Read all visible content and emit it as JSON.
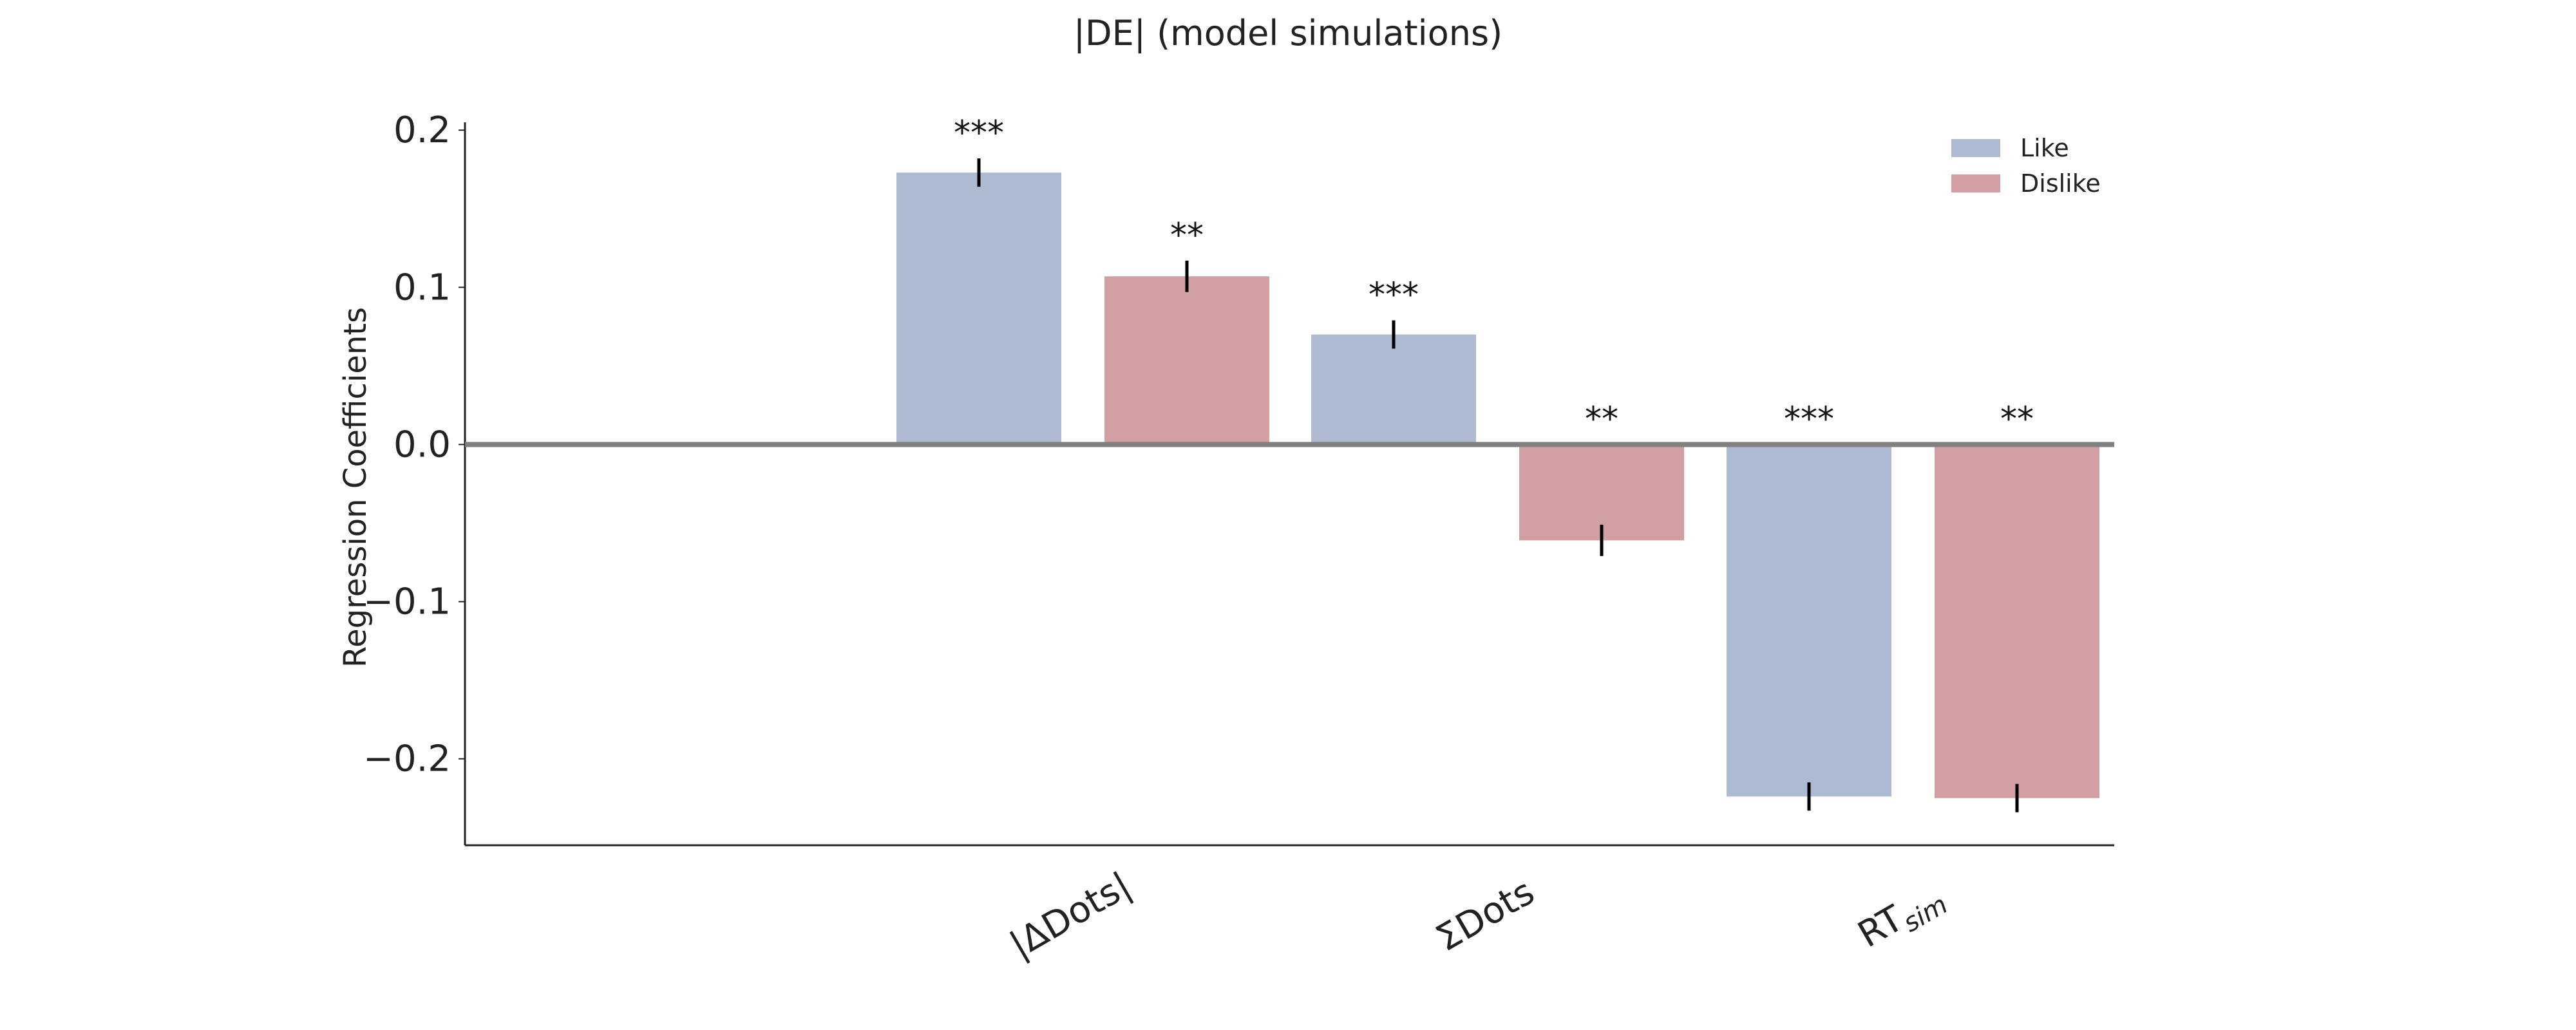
{
  "chart_data": {
    "type": "bar",
    "title": "|DE| (model simulations)",
    "xlabel": "",
    "ylabel": "Regression Coefficients",
    "categories": [
      "|ΔDots|",
      "ΣDots",
      "RT_sim"
    ],
    "category_labels": [
      {
        "main": "|ΔDots|",
        "sub": ""
      },
      {
        "main": "ΣDots",
        "sub": ""
      },
      {
        "main": "RT",
        "sub": "sim"
      }
    ],
    "series": [
      {
        "name": "Like",
        "color": "#aebad2",
        "values": [
          0.173,
          0.07,
          -0.224
        ],
        "errors": [
          0.009,
          0.009,
          0.009
        ],
        "significance": [
          "***",
          "***",
          "***"
        ]
      },
      {
        "name": "Dislike",
        "color": "#d2a0a2",
        "values": [
          0.107,
          -0.061,
          -0.225
        ],
        "errors": [
          0.01,
          0.01,
          0.009
        ],
        "significance": [
          "**",
          "**",
          "**"
        ]
      }
    ],
    "ylim": [
      -0.255,
      0.205
    ],
    "yticks": [
      -0.2,
      -0.1,
      0.0,
      0.1,
      0.2
    ],
    "ytick_labels": [
      "−0.2",
      "−0.1",
      "0.0",
      "0.1",
      "0.2"
    ],
    "zero_line": true,
    "grid": false,
    "legend": "top-right"
  }
}
